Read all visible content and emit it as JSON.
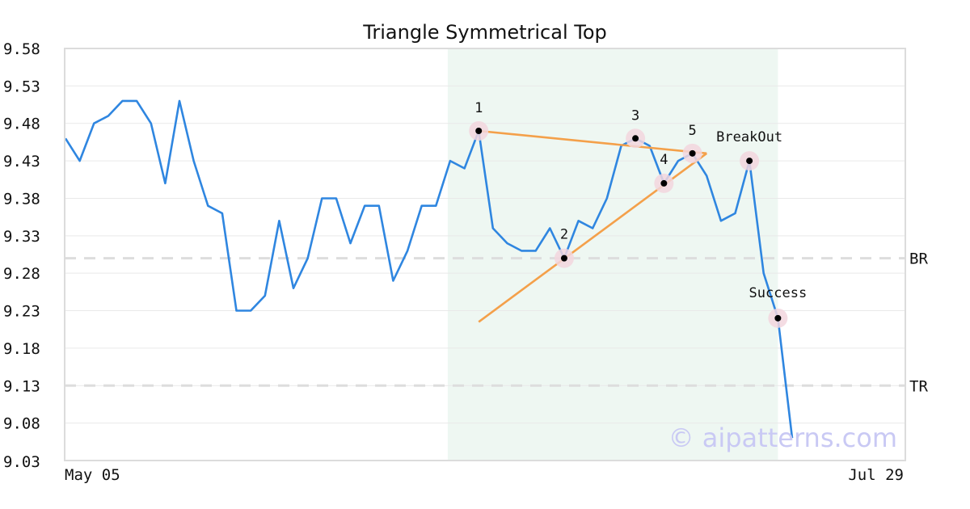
{
  "chart_data": {
    "type": "line",
    "title": "Triangle Symmetrical Top",
    "xlabel": "",
    "ylabel": "",
    "x_tick_labels": [
      "May 05",
      "Jul 29"
    ],
    "ylim": [
      9.03,
      9.58
    ],
    "y_ticks": [
      "9.58",
      "9.53",
      "9.48",
      "9.43",
      "9.38",
      "9.33",
      "9.28",
      "9.23",
      "9.18",
      "9.13",
      "9.08",
      "9.03"
    ],
    "grid": "horizontal",
    "colors": {
      "line": "#2f86e0",
      "trend": "#f4a04a",
      "highlight": "#eef7f2",
      "ref": "#dddddd",
      "marker_ring": "#f2d6de",
      "marker": "#000000"
    },
    "series": [
      {
        "values": [
          9.46,
          9.43,
          9.48,
          9.49,
          9.51,
          9.51,
          9.48,
          9.4,
          9.51,
          9.43,
          9.37,
          9.36,
          9.23,
          9.23,
          9.25,
          9.35,
          9.26,
          9.3,
          9.38,
          9.38,
          9.32,
          9.37,
          9.37,
          9.27,
          9.31,
          9.37,
          9.37,
          9.43,
          9.42,
          9.47,
          9.34,
          9.32,
          9.31,
          9.31,
          9.34,
          9.3,
          9.35,
          9.34,
          9.38,
          9.45,
          9.46,
          9.45,
          9.4,
          9.43,
          9.44,
          9.41,
          9.35,
          9.36,
          9.43,
          9.28,
          9.22,
          9.06
        ]
      }
    ],
    "highlight_range": [
      27,
      50
    ],
    "trend_lines": [
      {
        "from": [
          29,
          9.47
        ],
        "to": [
          45,
          9.44
        ]
      },
      {
        "from": [
          29,
          9.215
        ],
        "to": [
          45,
          9.44
        ]
      }
    ],
    "points": [
      {
        "label": "1",
        "index": 29,
        "value": 9.47
      },
      {
        "label": "2",
        "index": 35,
        "value": 9.3
      },
      {
        "label": "3",
        "index": 40,
        "value": 9.46
      },
      {
        "label": "4",
        "index": 42,
        "value": 9.4
      },
      {
        "label": "5",
        "index": 44,
        "value": 9.44
      },
      {
        "label": "BreakOut",
        "index": 48,
        "value": 9.43
      },
      {
        "label": "Success",
        "index": 50,
        "value": 9.22
      }
    ],
    "reference_lines": [
      {
        "label": "BR",
        "value": 9.3
      },
      {
        "label": "TR",
        "value": 9.13
      }
    ],
    "watermark": "© aipatterns.com"
  }
}
